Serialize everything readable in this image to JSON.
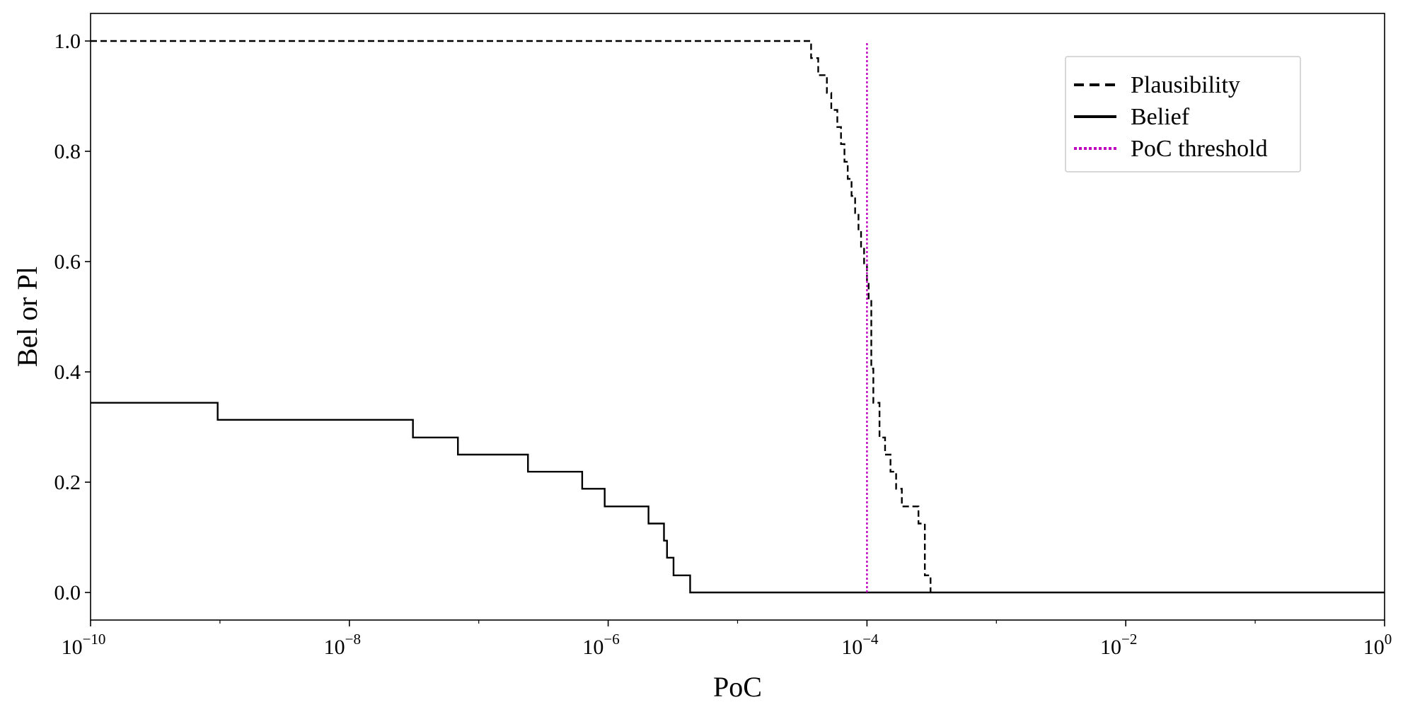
{
  "chart_data": {
    "type": "line",
    "xlabel": "PoC",
    "ylabel": "Bel or Pl",
    "xscale": "log",
    "xlim": [
      1e-10,
      1
    ],
    "ylim": [
      -0.05,
      1.05
    ],
    "xticks": [
      {
        "value": 1e-10,
        "base": "10",
        "exp": "−10"
      },
      {
        "value": 1e-08,
        "base": "10",
        "exp": "−8"
      },
      {
        "value": 1e-06,
        "base": "10",
        "exp": "−6"
      },
      {
        "value": 0.0001,
        "base": "10",
        "exp": "−4"
      },
      {
        "value": 0.01,
        "base": "10",
        "exp": "−2"
      },
      {
        "value": 1,
        "base": "10",
        "exp": "0"
      }
    ],
    "yticks": [
      {
        "value": 0.0,
        "label": "0.0"
      },
      {
        "value": 0.2,
        "label": "0.2"
      },
      {
        "value": 0.4,
        "label": "0.4"
      },
      {
        "value": 0.6,
        "label": "0.6"
      },
      {
        "value": 0.8,
        "label": "0.8"
      },
      {
        "value": 1.0,
        "label": "1.0"
      }
    ],
    "legend_position": "top-right",
    "series": [
      {
        "name": "Plausibility",
        "style": "dashed",
        "color": "#000000",
        "step": "post",
        "x": [
          1e-10,
          3.7e-05,
          4.2e-05,
          4.9e-05,
          5.3e-05,
          5.9e-05,
          6.3e-05,
          6.7e-05,
          7.1e-05,
          7.6e-05,
          8.1e-05,
          8.6e-05,
          9e-05,
          9.5e-05,
          0.0001,
          0.000103,
          0.000108,
          0.000112,
          0.000125,
          0.000138,
          0.000152,
          0.000168,
          0.000186,
          0.00025,
          0.00028,
          0.00031
        ],
        "y": [
          1.0,
          0.969,
          0.938,
          0.906,
          0.875,
          0.844,
          0.813,
          0.781,
          0.75,
          0.719,
          0.688,
          0.656,
          0.625,
          0.594,
          0.563,
          0.531,
          0.406,
          0.344,
          0.281,
          0.25,
          0.219,
          0.188,
          0.156,
          0.125,
          0.031,
          0.0
        ]
      },
      {
        "name": "Belief",
        "style": "solid",
        "color": "#000000",
        "step": "post",
        "x": [
          1e-10,
          9.6e-10,
          3.1e-08,
          6.9e-08,
          2.4e-07,
          6.3e-07,
          9.4e-07,
          2.05e-06,
          2.7e-06,
          2.85e-06,
          3.2e-06,
          4.3e-06,
          1.0
        ],
        "y": [
          0.344,
          0.313,
          0.281,
          0.25,
          0.219,
          0.188,
          0.156,
          0.125,
          0.094,
          0.063,
          0.031,
          0.0,
          0.0
        ]
      }
    ],
    "vlines": [
      {
        "name": "PoC threshold",
        "x": 0.0001,
        "ymin": 0.0,
        "ymax": 1.0,
        "style": "dotted",
        "color": "#bf00bf"
      }
    ]
  }
}
